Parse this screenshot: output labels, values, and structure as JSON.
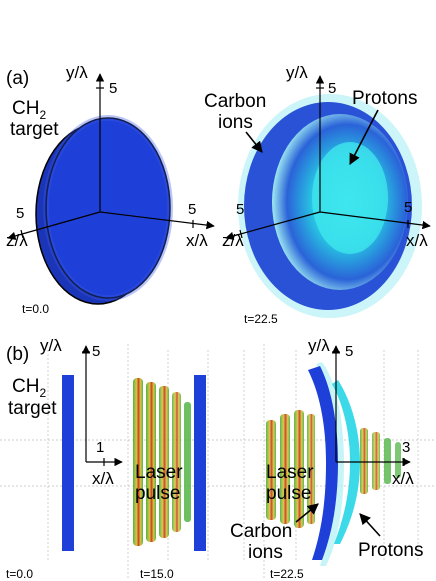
{
  "panel_a": {
    "label": "(a)",
    "left": {
      "target_label_line1": "CH",
      "target_label_sub": "2",
      "target_label_line2": "target",
      "y_axis_label": "y/λ",
      "x_axis_label": "x/λ",
      "z_axis_label": "z/λ",
      "y_tick": "5",
      "x_tick": "5",
      "z_tick": "5",
      "time": "t=0.0"
    },
    "right": {
      "carbon_label_line1": "Carbon",
      "carbon_label_line2": "ions",
      "protons_label": "Protons",
      "y_axis_label": "y/λ",
      "x_axis_label": "x/λ",
      "z_axis_label": "z/λ",
      "y_tick": "5",
      "x_tick": "5",
      "z_tick": "5",
      "time": "t=22.5"
    }
  },
  "panel_b": {
    "label": "(b)",
    "y_axis_label": "y/λ",
    "y_tick": "5",
    "target_label_line1": "CH",
    "target_label_sub": "2",
    "target_label_line2": "target",
    "x_axis_label_left": "x/λ",
    "x_tick_left": "1",
    "laser_label_line1": "Laser",
    "laser_label_line2": "pulse",
    "laser_label_line1_right": "Laser",
    "laser_label_line2_right": "pulse",
    "y_axis_label_right": "y/λ",
    "y_tick_right": "5",
    "x_axis_label_right": "x/λ",
    "x_tick_right": "3",
    "carbon_label_line1": "Carbon",
    "carbon_label_line2": "ions",
    "protons_label": "Protons",
    "time_1": "t=0.0",
    "time_2": "t=15.0",
    "time_3": "t=22.5"
  },
  "colors": {
    "target_blue": "#1e3fd8",
    "proton_cyan": "#27d6e6",
    "laser_green": "#47b03a",
    "laser_red": "#c8321a",
    "laser_yellow": "#d9c43a"
  }
}
